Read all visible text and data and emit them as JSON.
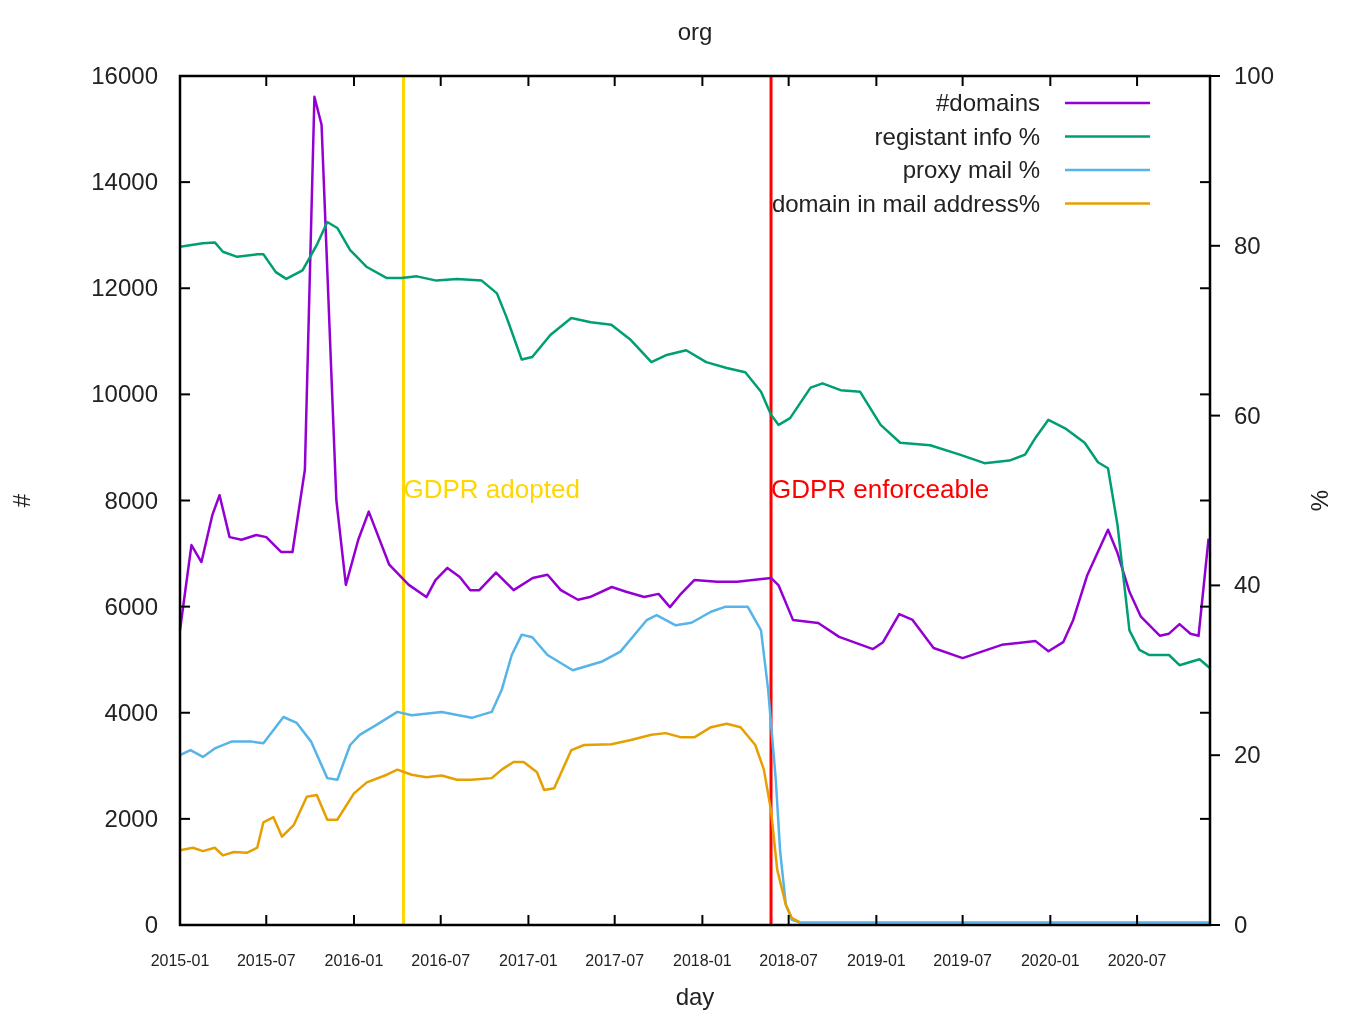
{
  "chart_data": {
    "type": "line",
    "title": "org",
    "xlabel": "day",
    "ylabel": "#",
    "y2label": "%",
    "xlim": [
      "2015-01-01",
      "2020-12-01"
    ],
    "xticks": [
      "2015-01",
      "2015-07",
      "2016-01",
      "2016-07",
      "2017-01",
      "2017-07",
      "2018-01",
      "2018-07",
      "2019-01",
      "2019-07",
      "2020-01",
      "2020-07"
    ],
    "ylim": [
      0,
      16000
    ],
    "yticks": [
      0,
      2000,
      4000,
      6000,
      8000,
      10000,
      12000,
      14000,
      16000
    ],
    "y2lim": [
      0,
      100
    ],
    "y2ticks": [
      0,
      20,
      40,
      60,
      80,
      100
    ],
    "grid": false,
    "legend": "top right",
    "marker": "none",
    "line_style": "solid",
    "ref_lines": [
      {
        "axis": "x",
        "value": "2016-04-14",
        "label": "GDPR adopted",
        "color": "#ffd700"
      },
      {
        "axis": "x",
        "value": "2018-05-25",
        "label": "GDPR enforceable",
        "color": "#ff0000"
      }
    ],
    "series": [
      {
        "name": "#domains",
        "color": "#9400d3",
        "x": [
          "2015-01-01",
          "2015-01-25",
          "2015-02-15",
          "2015-03-10",
          "2015-03-25",
          "2015-04-15",
          "2015-05-10",
          "2015-06-10",
          "2015-07-01",
          "2015-08-01",
          "2015-08-25",
          "2015-09-20",
          "2015-10-10",
          "2015-10-25",
          "2015-11-25",
          "2015-12-15",
          "2016-01-10",
          "2016-02-01",
          "2016-03-15",
          "2016-04-25",
          "2016-06-01",
          "2016-06-20",
          "2016-07-15",
          "2016-08-10",
          "2016-09-01",
          "2016-09-20",
          "2016-10-25",
          "2016-12-01",
          "2017-01-10",
          "2017-02-10",
          "2017-03-10",
          "2017-04-15",
          "2017-05-10",
          "2017-06-25",
          "2017-07-25",
          "2017-09-01",
          "2017-10-01",
          "2017-10-25",
          "2017-11-15",
          "2017-12-15",
          "2018-02-01",
          "2018-03-15",
          "2018-05-25",
          "2018-06-10",
          "2018-07-10",
          "2018-09-01",
          "2018-10-15",
          "2018-12-25",
          "2019-01-15",
          "2019-02-18",
          "2019-03-18",
          "2019-05-01",
          "2019-07-01",
          "2019-09-21",
          "2019-12-01",
          "2019-12-28",
          "2020-01-28",
          "2020-02-18",
          "2020-03-18",
          "2020-05-01",
          "2020-05-21",
          "2020-06-15",
          "2020-07-09",
          "2020-08-18",
          "2020-09-06",
          "2020-09-28",
          "2020-10-21",
          "2020-11-07",
          "2020-11-28"
        ],
        "values": [
          5560,
          7160,
          6840,
          7730,
          8100,
          7310,
          7260,
          7350,
          7310,
          7030,
          7030,
          8580,
          15610,
          15080,
          8010,
          6410,
          7260,
          7790,
          6790,
          6410,
          6180,
          6500,
          6730,
          6560,
          6310,
          6310,
          6640,
          6310,
          6540,
          6600,
          6310,
          6130,
          6180,
          6370,
          6280,
          6180,
          6240,
          5990,
          6220,
          6500,
          6470,
          6470,
          6540,
          6400,
          5750,
          5690,
          5430,
          5200,
          5330,
          5860,
          5750,
          5220,
          5030,
          5280,
          5350,
          5160,
          5330,
          5750,
          6580,
          7450,
          7010,
          6280,
          5810,
          5450,
          5490,
          5670,
          5490,
          5450,
          7280
        ]
      },
      {
        "name": "registant info %",
        "color": "#009e73",
        "axis": "y2",
        "x": [
          "2015-01-01",
          "2015-02-18",
          "2015-03-15",
          "2015-04-01",
          "2015-05-01",
          "2015-06-12",
          "2015-06-25",
          "2015-07-21",
          "2015-08-12",
          "2015-09-15",
          "2015-10-15",
          "2015-11-06",
          "2015-11-27",
          "2015-12-24",
          "2016-01-28",
          "2016-03-10",
          "2016-04-10",
          "2016-05-12",
          "2016-06-22",
          "2016-08-04",
          "2016-09-25",
          "2016-10-27",
          "2016-11-16",
          "2016-12-18",
          "2017-01-09",
          "2017-02-16",
          "2017-04-01",
          "2017-05-12",
          "2017-06-24",
          "2017-08-04",
          "2017-09-16",
          "2017-10-16",
          "2017-11-28",
          "2018-01-09",
          "2018-02-21",
          "2018-04-01",
          "2018-05-04",
          "2018-05-25",
          "2018-06-10",
          "2018-07-04",
          "2018-08-16",
          "2018-09-10",
          "2018-10-18",
          "2018-11-28",
          "2019-01-10",
          "2019-02-20",
          "2019-04-24",
          "2019-06-25",
          "2019-08-16",
          "2019-10-07",
          "2019-11-09",
          "2019-12-01",
          "2019-12-28",
          "2020-02-01",
          "2020-03-13",
          "2020-04-10",
          "2020-05-01",
          "2020-05-21",
          "2020-06-15",
          "2020-07-06",
          "2020-07-27",
          "2020-09-06",
          "2020-09-28",
          "2020-11-09",
          "2020-11-30"
        ],
        "values": [
          79.9,
          80.3,
          80.4,
          79.3,
          78.7,
          79.0,
          79.0,
          76.9,
          76.1,
          77.1,
          80.1,
          82.8,
          82.1,
          79.5,
          77.5,
          76.2,
          76.2,
          76.4,
          75.9,
          76.1,
          75.9,
          74.4,
          71.6,
          66.6,
          66.9,
          69.5,
          71.5,
          71.0,
          70.7,
          68.9,
          66.3,
          67.1,
          67.7,
          66.3,
          65.6,
          65.1,
          62.8,
          60.1,
          58.9,
          59.7,
          63.3,
          63.8,
          63.0,
          62.8,
          58.9,
          56.8,
          56.5,
          55.4,
          54.4,
          54.7,
          55.4,
          57.4,
          59.5,
          58.5,
          56.8,
          54.5,
          53.8,
          47.1,
          34.7,
          32.4,
          31.8,
          31.8,
          30.6,
          31.3,
          30.3
        ]
      },
      {
        "name": "proxy mail %",
        "color": "#56b4e9",
        "axis": "y2",
        "x": [
          "2015-01-01",
          "2015-01-23",
          "2015-02-18",
          "2015-03-15",
          "2015-04-19",
          "2015-06-01",
          "2015-06-25",
          "2015-08-06",
          "2015-09-03",
          "2015-10-03",
          "2015-11-06",
          "2015-11-27",
          "2015-12-24",
          "2016-01-13",
          "2016-02-18",
          "2016-04-01",
          "2016-05-01",
          "2016-07-03",
          "2016-09-04",
          "2016-10-16",
          "2016-11-06",
          "2016-11-27",
          "2016-12-18",
          "2017-01-09",
          "2017-02-10",
          "2017-04-04",
          "2017-06-03",
          "2017-07-13",
          "2017-09-06",
          "2017-09-27",
          "2017-11-06",
          "2017-12-09",
          "2018-01-19",
          "2018-02-19",
          "2018-04-06",
          "2018-05-04",
          "2018-05-19",
          "2018-06-04",
          "2018-06-13",
          "2018-06-25",
          "2018-07-08",
          "2018-07-25",
          "2020-11-30"
        ],
        "values": [
          20.0,
          20.6,
          19.8,
          20.8,
          21.6,
          21.6,
          21.4,
          24.5,
          23.8,
          21.6,
          17.3,
          17.1,
          21.2,
          22.4,
          23.6,
          25.1,
          24.7,
          25.1,
          24.4,
          25.1,
          27.7,
          31.8,
          34.2,
          33.9,
          31.8,
          30.0,
          31.0,
          32.2,
          35.9,
          36.5,
          35.3,
          35.6,
          36.9,
          37.5,
          37.5,
          34.7,
          27.7,
          17.1,
          8.8,
          2.4,
          0.6,
          0.3,
          0.3
        ]
      },
      {
        "name": "domain in mail address%",
        "color": "#e69f00",
        "axis": "y2",
        "x": [
          "2015-01-01",
          "2015-01-28",
          "2015-02-18",
          "2015-03-15",
          "2015-04-01",
          "2015-04-24",
          "2015-05-21",
          "2015-06-12",
          "2015-06-25",
          "2015-07-16",
          "2015-08-03",
          "2015-08-28",
          "2015-09-24",
          "2015-10-15",
          "2015-11-06",
          "2015-11-27",
          "2016-01-01",
          "2016-01-28",
          "2016-03-10",
          "2016-04-01",
          "2016-05-01",
          "2016-06-01",
          "2016-07-03",
          "2016-08-04",
          "2016-09-04",
          "2016-10-16",
          "2016-11-06",
          "2016-12-01",
          "2016-12-22",
          "2017-01-19",
          "2017-02-03",
          "2017-02-24",
          "2017-04-01",
          "2017-04-28",
          "2017-06-24",
          "2017-08-04",
          "2017-09-16",
          "2017-10-16",
          "2017-11-18",
          "2017-12-15",
          "2018-01-19",
          "2018-02-21",
          "2018-03-22",
          "2018-04-22",
          "2018-05-10",
          "2018-05-25",
          "2018-06-07",
          "2018-06-25",
          "2018-07-08",
          "2018-07-25"
        ],
        "values": [
          8.8,
          9.1,
          8.7,
          9.1,
          8.2,
          8.6,
          8.5,
          9.1,
          12.1,
          12.7,
          10.4,
          11.8,
          15.1,
          15.3,
          12.4,
          12.4,
          15.5,
          16.8,
          17.7,
          18.3,
          17.7,
          17.4,
          17.6,
          17.1,
          17.1,
          17.3,
          18.3,
          19.2,
          19.2,
          18.0,
          15.9,
          16.1,
          20.6,
          21.2,
          21.3,
          21.8,
          22.4,
          22.6,
          22.1,
          22.1,
          23.3,
          23.7,
          23.3,
          21.2,
          18.3,
          13.5,
          6.5,
          2.4,
          0.8,
          0.3
        ]
      }
    ]
  }
}
